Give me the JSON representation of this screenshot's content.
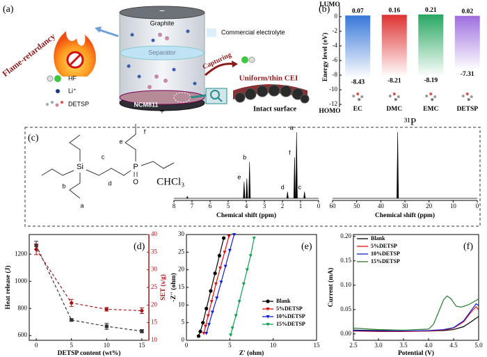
{
  "diagram_a": {
    "label": "(a)",
    "flame": "Flame-retardancy",
    "anode": "Graphite",
    "anode_sign": "−",
    "separator": "Separator",
    "electrolyte": "Commercial electrolyte",
    "capturing": "Capturing",
    "cei": "Uniform/thin CEI",
    "surface": "Intact surface",
    "cathode": "NCM811",
    "cathode_sign": "+",
    "legend": [
      "HF",
      "Li⁺",
      "DETSP"
    ]
  },
  "molecule_c": {
    "si": "Si",
    "p": "P",
    "o": "O",
    "labels": [
      "a",
      "b",
      "c",
      "d",
      "e",
      "f"
    ]
  },
  "chart_data": [
    {
      "type": "bar",
      "panel_label": "(b)",
      "ylabel": "Energy level (eV)",
      "categories": [
        "EC",
        "DMC",
        "EMC",
        "DETSP"
      ],
      "colors": [
        "#3a78d8",
        "#e03434",
        "#2aa862",
        "#a070e0"
      ],
      "series": [
        {
          "name": "LUMO",
          "values": [
            0.07,
            0.16,
            0.21,
            0.02
          ]
        },
        {
          "name": "HOMO",
          "values": [
            -8.43,
            -8.21,
            -8.19,
            -7.31
          ]
        }
      ],
      "ylim": [
        -12,
        0.95
      ],
      "yticks": [
        0,
        -2,
        -4,
        -6,
        -8,
        -10,
        -12
      ]
    },
    {
      "type": "spectrum",
      "panel_label": "(c)",
      "xlabel": "Chemical shift (ppm)",
      "xlim": [
        8,
        0
      ],
      "xticks": [
        8,
        7,
        6,
        5,
        4,
        3,
        2,
        1,
        0
      ],
      "ylim": [
        0,
        1
      ],
      "peaks": {
        "x": [
          7.26,
          4.12,
          3.97,
          3.82,
          1.72,
          1.33,
          1.22,
          0.78
        ],
        "heights": [
          0.03,
          0.25,
          0.3,
          0.55,
          0.1,
          0.62,
          1.0,
          0.1
        ],
        "labels": [
          "CHCl₃",
          "e",
          null,
          "b",
          "d",
          "f",
          "a",
          "c"
        ]
      }
    },
    {
      "type": "spectrum",
      "xlabel": "Chemical shift (ppm)",
      "xlim": [
        60,
        0
      ],
      "xticks": [
        60,
        50,
        40,
        30,
        20,
        10,
        0
      ],
      "ylim": [
        0,
        1
      ],
      "peaks": {
        "x": [
          33
        ],
        "heights": [
          1
        ],
        "labels": [
          "³¹P"
        ]
      }
    },
    {
      "type": "line",
      "panel_label": "(d)",
      "xlabel": "DETSP content (wt%)",
      "ylabel": "Heat release (J)",
      "y2label": "SET (s/g)",
      "y2color": "#a01818",
      "x": [
        0,
        5,
        10,
        15
      ],
      "xlim": [
        -1,
        16
      ],
      "xticks": [
        0,
        5,
        10,
        15
      ],
      "ylim": [
        565,
        1345
      ],
      "yticks": [
        600,
        800,
        1000,
        1200
      ],
      "y2lim": [
        10,
        40
      ],
      "y2ticks": [
        10,
        15,
        20,
        25,
        30,
        35,
        40
      ],
      "series": [
        {
          "color": "#333333",
          "marker": "square",
          "dashed": true,
          "values": [
            1265,
            715,
            668,
            632
          ],
          "errors": [
            30,
            8,
            22,
            12
          ]
        },
        {
          "axis": "y2",
          "color": "#a01818",
          "marker": "circle",
          "dashed": true,
          "values": [
            35.8,
            20.6,
            18.8,
            18.4
          ],
          "errors": [
            1.5,
            1.0,
            0.5,
            0.8
          ]
        }
      ]
    },
    {
      "type": "line",
      "panel_label": "(e)",
      "xlabel": "Z' (ohm)",
      "ylabel": "-Z'' (ohm)",
      "xlim": [
        0,
        15
      ],
      "xticks": [
        0,
        5,
        10,
        15
      ],
      "ylim": [
        0,
        30
      ],
      "yticks": [
        0,
        5,
        10,
        15,
        20,
        25,
        30
      ],
      "legend": "lower right",
      "series": [
        {
          "name": "Blank",
          "color": "#000000",
          "marker": "circle",
          "x": [
            1.4,
            1.6,
            1.9,
            2.3,
            2.8,
            3.3,
            3.8,
            4.3
          ],
          "values": [
            1.2,
            2.5,
            5,
            9,
            14,
            19,
            24,
            29
          ]
        },
        {
          "name": "5%DETSP",
          "color": "#e01010",
          "marker": "triangle",
          "x": [
            2.0,
            2.2,
            2.5,
            2.9,
            3.4,
            3.9,
            4.4,
            4.9
          ],
          "values": [
            2,
            4,
            7,
            11,
            16,
            20.5,
            25,
            29.5
          ]
        },
        {
          "name": "10%DETSP",
          "color": "#1020d0",
          "marker": "triangle",
          "x": [
            2.3,
            2.6,
            3.0,
            3.5,
            4.0,
            4.5,
            5.0,
            5.5
          ],
          "values": [
            2,
            4.5,
            8,
            12,
            16.5,
            21,
            25.5,
            30
          ]
        },
        {
          "name": "15%DETSP",
          "color": "#10a050",
          "marker": "triangle",
          "x": [
            5.1,
            5.3,
            5.7,
            6.1,
            6.6,
            7.0,
            7.4,
            7.8
          ],
          "values": [
            1.5,
            3.5,
            7,
            11,
            16,
            20,
            24,
            29
          ]
        }
      ]
    },
    {
      "type": "line",
      "panel_label": "(f)",
      "xlabel": "Potential (V)",
      "ylabel": "Current (mA)",
      "xlim": [
        2.5,
        5.0
      ],
      "xticks": [
        2.5,
        {
          "value": 3,
          "label": "3.0"
        },
        3.5,
        {
          "value": 4,
          "label": "4.0"
        },
        4.5,
        {
          "value": 5,
          "label": "5.0"
        }
      ],
      "ylim": [
        -0.013,
        0.204
      ],
      "yticks": [
        {
          "value": 0,
          "label": "0.00"
        },
        0.05,
        {
          "value": 0.1,
          "label": "0.10"
        },
        0.15,
        {
          "value": 0.2,
          "label": "0.20"
        }
      ],
      "legend": "upper left",
      "series": [
        {
          "name": "Blank",
          "color": "#000000",
          "x": [
            2.5,
            3.0,
            3.5,
            4.0,
            4.3,
            4.5,
            4.7,
            4.85,
            5.0
          ],
          "values": [
            0.008,
            0.007,
            0.006,
            0.006,
            0.007,
            0.009,
            0.015,
            0.025,
            0.036
          ]
        },
        {
          "name": "5%DETSP",
          "color": "#e01010",
          "x": [
            2.5,
            3.0,
            3.5,
            4.0,
            4.3,
            4.5,
            4.7,
            4.85,
            4.95,
            5.0
          ],
          "values": [
            0.006,
            0.005,
            0.005,
            0.006,
            0.008,
            0.012,
            0.025,
            0.045,
            0.056,
            0.049
          ]
        },
        {
          "name": "10%DETSP",
          "color": "#1020d0",
          "x": [
            2.5,
            3.0,
            3.5,
            4.0,
            4.3,
            4.5,
            4.7,
            4.85,
            4.95,
            5.0
          ],
          "values": [
            0.007,
            0.006,
            0.006,
            0.007,
            0.009,
            0.013,
            0.027,
            0.048,
            0.062,
            0.058
          ]
        },
        {
          "name": "15%DETSP",
          "color": "#2a7a30",
          "x": [
            2.5,
            3.0,
            3.5,
            4.0,
            4.1,
            4.2,
            4.3,
            4.37,
            4.45,
            4.55,
            4.65,
            4.8,
            5.0
          ],
          "values": [
            0.012,
            0.009,
            0.008,
            0.01,
            0.02,
            0.045,
            0.07,
            0.078,
            0.072,
            0.057,
            0.055,
            0.06,
            0.072
          ]
        }
      ]
    }
  ]
}
